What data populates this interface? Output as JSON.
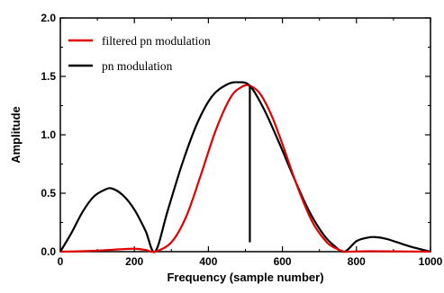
{
  "chart_data": {
    "type": "line",
    "title": "",
    "xlabel": "Frequency  (sample number)",
    "ylabel": "Amplitude",
    "xlim": [
      0,
      1000
    ],
    "ylim": [
      0,
      2.0
    ],
    "x_ticks": [
      0,
      200,
      400,
      600,
      800,
      1000
    ],
    "y_ticks": [
      0.0,
      0.5,
      1.0,
      1.5,
      2.0
    ],
    "x_tick_labels": [
      "0",
      "200",
      "400",
      "600",
      "800",
      "1000"
    ],
    "y_tick_labels": [
      "0.0",
      "0.5",
      "1.0",
      "1.5",
      "2.0"
    ],
    "grid": false,
    "legend_position": "top-left",
    "series": [
      {
        "name": "filtered pn modulation",
        "color": "#e00000",
        "x": [
          0,
          40,
          80,
          120,
          160,
          200,
          230,
          256,
          300,
          340,
          380,
          420,
          460,
          490,
          512,
          540,
          570,
          600,
          640,
          680,
          720,
          750,
          768,
          800,
          840,
          880,
          920,
          960,
          1000
        ],
        "y": [
          0,
          0.002,
          0.006,
          0.012,
          0.02,
          0.025,
          0.015,
          0,
          0.08,
          0.3,
          0.66,
          1.04,
          1.32,
          1.41,
          1.42,
          1.35,
          1.17,
          0.92,
          0.56,
          0.26,
          0.08,
          0.02,
          0,
          0.002,
          0.004,
          0.003,
          0.002,
          0.001,
          0
        ]
      },
      {
        "name": "pn modulation",
        "color": "#000000",
        "x": [
          0,
          30,
          60,
          90,
          120,
          140,
          170,
          200,
          230,
          256,
          290,
          330,
          370,
          410,
          450,
          480,
          512,
          550,
          590,
          630,
          670,
          710,
          740,
          768,
          800,
          830,
          850,
          880,
          910,
          950,
          1000
        ],
        "y": [
          0,
          0.16,
          0.34,
          0.47,
          0.53,
          0.54,
          0.48,
          0.36,
          0.18,
          0,
          0.35,
          0.76,
          1.1,
          1.33,
          1.43,
          1.45,
          1.42,
          1.22,
          0.94,
          0.64,
          0.36,
          0.15,
          0.05,
          0,
          0.09,
          0.12,
          0.125,
          0.11,
          0.08,
          0.04,
          0
        ]
      },
      {
        "name": "",
        "color": "#000000",
        "x": [
          512,
          512
        ],
        "y": [
          0.08,
          1.42
        ]
      }
    ]
  }
}
